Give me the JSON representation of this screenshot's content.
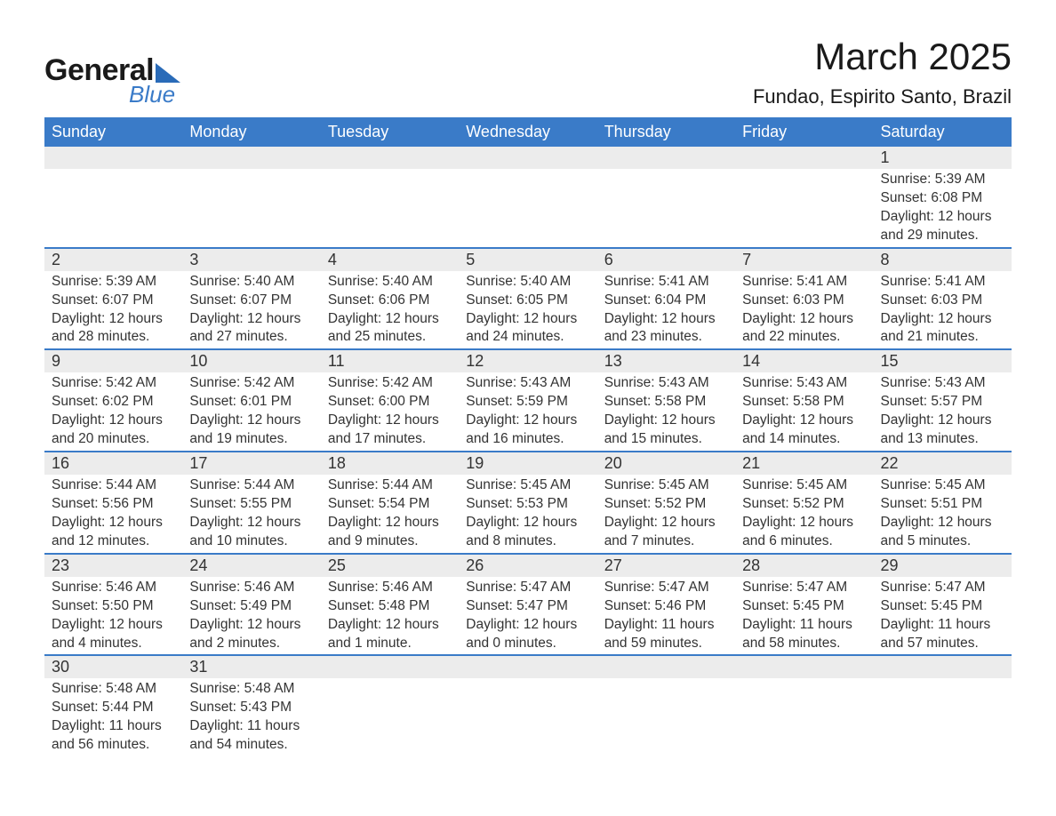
{
  "logo": {
    "line1": "General",
    "line2": "Blue",
    "accent_color": "#3a7bc8"
  },
  "title": "March 2025",
  "location": "Fundao, Espirito Santo, Brazil",
  "weekdays": [
    "Sunday",
    "Monday",
    "Tuesday",
    "Wednesday",
    "Thursday",
    "Friday",
    "Saturday"
  ],
  "colors": {
    "header_bg": "#3a7bc8",
    "header_text": "#ffffff",
    "daynum_bg": "#ececec",
    "row_border": "#3a7bc8",
    "text": "#333333",
    "background": "#ffffff"
  },
  "weeks": [
    [
      null,
      null,
      null,
      null,
      null,
      null,
      {
        "n": "1",
        "sr": "Sunrise: 5:39 AM",
        "ss": "Sunset: 6:08 PM",
        "d1": "Daylight: 12 hours",
        "d2": "and 29 minutes."
      }
    ],
    [
      {
        "n": "2",
        "sr": "Sunrise: 5:39 AM",
        "ss": "Sunset: 6:07 PM",
        "d1": "Daylight: 12 hours",
        "d2": "and 28 minutes."
      },
      {
        "n": "3",
        "sr": "Sunrise: 5:40 AM",
        "ss": "Sunset: 6:07 PM",
        "d1": "Daylight: 12 hours",
        "d2": "and 27 minutes."
      },
      {
        "n": "4",
        "sr": "Sunrise: 5:40 AM",
        "ss": "Sunset: 6:06 PM",
        "d1": "Daylight: 12 hours",
        "d2": "and 25 minutes."
      },
      {
        "n": "5",
        "sr": "Sunrise: 5:40 AM",
        "ss": "Sunset: 6:05 PM",
        "d1": "Daylight: 12 hours",
        "d2": "and 24 minutes."
      },
      {
        "n": "6",
        "sr": "Sunrise: 5:41 AM",
        "ss": "Sunset: 6:04 PM",
        "d1": "Daylight: 12 hours",
        "d2": "and 23 minutes."
      },
      {
        "n": "7",
        "sr": "Sunrise: 5:41 AM",
        "ss": "Sunset: 6:03 PM",
        "d1": "Daylight: 12 hours",
        "d2": "and 22 minutes."
      },
      {
        "n": "8",
        "sr": "Sunrise: 5:41 AM",
        "ss": "Sunset: 6:03 PM",
        "d1": "Daylight: 12 hours",
        "d2": "and 21 minutes."
      }
    ],
    [
      {
        "n": "9",
        "sr": "Sunrise: 5:42 AM",
        "ss": "Sunset: 6:02 PM",
        "d1": "Daylight: 12 hours",
        "d2": "and 20 minutes."
      },
      {
        "n": "10",
        "sr": "Sunrise: 5:42 AM",
        "ss": "Sunset: 6:01 PM",
        "d1": "Daylight: 12 hours",
        "d2": "and 19 minutes."
      },
      {
        "n": "11",
        "sr": "Sunrise: 5:42 AM",
        "ss": "Sunset: 6:00 PM",
        "d1": "Daylight: 12 hours",
        "d2": "and 17 minutes."
      },
      {
        "n": "12",
        "sr": "Sunrise: 5:43 AM",
        "ss": "Sunset: 5:59 PM",
        "d1": "Daylight: 12 hours",
        "d2": "and 16 minutes."
      },
      {
        "n": "13",
        "sr": "Sunrise: 5:43 AM",
        "ss": "Sunset: 5:58 PM",
        "d1": "Daylight: 12 hours",
        "d2": "and 15 minutes."
      },
      {
        "n": "14",
        "sr": "Sunrise: 5:43 AM",
        "ss": "Sunset: 5:58 PM",
        "d1": "Daylight: 12 hours",
        "d2": "and 14 minutes."
      },
      {
        "n": "15",
        "sr": "Sunrise: 5:43 AM",
        "ss": "Sunset: 5:57 PM",
        "d1": "Daylight: 12 hours",
        "d2": "and 13 minutes."
      }
    ],
    [
      {
        "n": "16",
        "sr": "Sunrise: 5:44 AM",
        "ss": "Sunset: 5:56 PM",
        "d1": "Daylight: 12 hours",
        "d2": "and 12 minutes."
      },
      {
        "n": "17",
        "sr": "Sunrise: 5:44 AM",
        "ss": "Sunset: 5:55 PM",
        "d1": "Daylight: 12 hours",
        "d2": "and 10 minutes."
      },
      {
        "n": "18",
        "sr": "Sunrise: 5:44 AM",
        "ss": "Sunset: 5:54 PM",
        "d1": "Daylight: 12 hours",
        "d2": "and 9 minutes."
      },
      {
        "n": "19",
        "sr": "Sunrise: 5:45 AM",
        "ss": "Sunset: 5:53 PM",
        "d1": "Daylight: 12 hours",
        "d2": "and 8 minutes."
      },
      {
        "n": "20",
        "sr": "Sunrise: 5:45 AM",
        "ss": "Sunset: 5:52 PM",
        "d1": "Daylight: 12 hours",
        "d2": "and 7 minutes."
      },
      {
        "n": "21",
        "sr": "Sunrise: 5:45 AM",
        "ss": "Sunset: 5:52 PM",
        "d1": "Daylight: 12 hours",
        "d2": "and 6 minutes."
      },
      {
        "n": "22",
        "sr": "Sunrise: 5:45 AM",
        "ss": "Sunset: 5:51 PM",
        "d1": "Daylight: 12 hours",
        "d2": "and 5 minutes."
      }
    ],
    [
      {
        "n": "23",
        "sr": "Sunrise: 5:46 AM",
        "ss": "Sunset: 5:50 PM",
        "d1": "Daylight: 12 hours",
        "d2": "and 4 minutes."
      },
      {
        "n": "24",
        "sr": "Sunrise: 5:46 AM",
        "ss": "Sunset: 5:49 PM",
        "d1": "Daylight: 12 hours",
        "d2": "and 2 minutes."
      },
      {
        "n": "25",
        "sr": "Sunrise: 5:46 AM",
        "ss": "Sunset: 5:48 PM",
        "d1": "Daylight: 12 hours",
        "d2": "and 1 minute."
      },
      {
        "n": "26",
        "sr": "Sunrise: 5:47 AM",
        "ss": "Sunset: 5:47 PM",
        "d1": "Daylight: 12 hours",
        "d2": "and 0 minutes."
      },
      {
        "n": "27",
        "sr": "Sunrise: 5:47 AM",
        "ss": "Sunset: 5:46 PM",
        "d1": "Daylight: 11 hours",
        "d2": "and 59 minutes."
      },
      {
        "n": "28",
        "sr": "Sunrise: 5:47 AM",
        "ss": "Sunset: 5:45 PM",
        "d1": "Daylight: 11 hours",
        "d2": "and 58 minutes."
      },
      {
        "n": "29",
        "sr": "Sunrise: 5:47 AM",
        "ss": "Sunset: 5:45 PM",
        "d1": "Daylight: 11 hours",
        "d2": "and 57 minutes."
      }
    ],
    [
      {
        "n": "30",
        "sr": "Sunrise: 5:48 AM",
        "ss": "Sunset: 5:44 PM",
        "d1": "Daylight: 11 hours",
        "d2": "and 56 minutes."
      },
      {
        "n": "31",
        "sr": "Sunrise: 5:48 AM",
        "ss": "Sunset: 5:43 PM",
        "d1": "Daylight: 11 hours",
        "d2": "and 54 minutes."
      },
      null,
      null,
      null,
      null,
      null
    ]
  ]
}
